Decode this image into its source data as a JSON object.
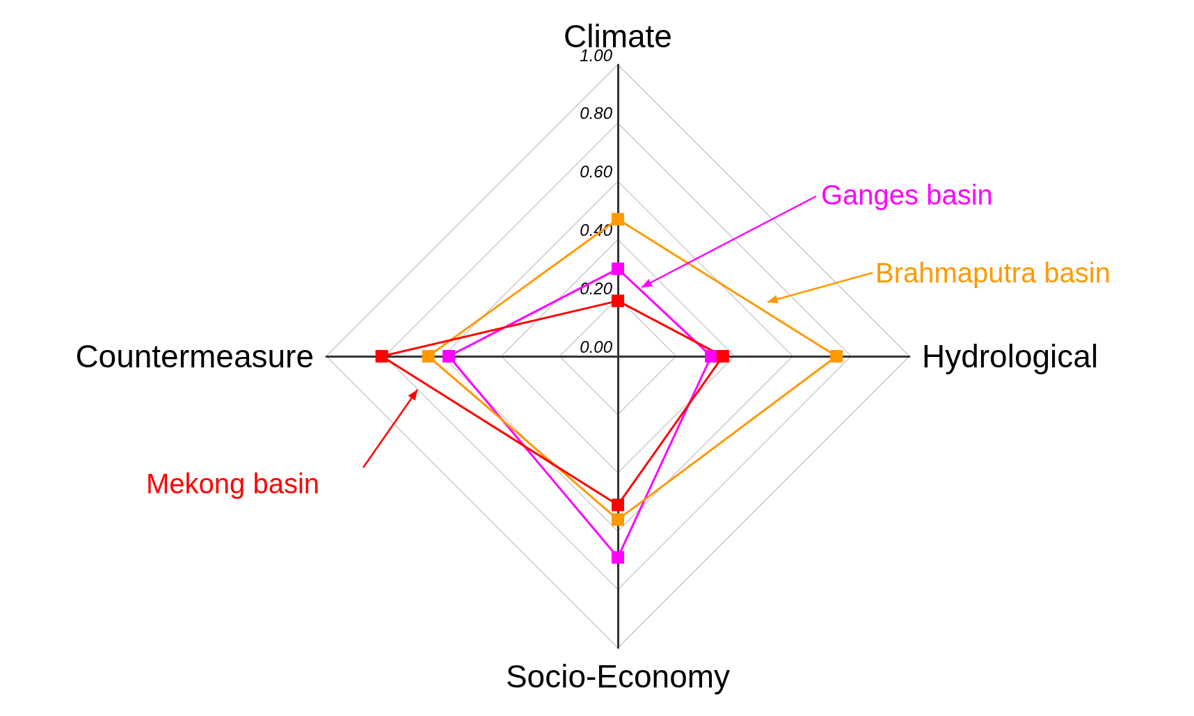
{
  "chart_data": {
    "type": "radar",
    "categories": [
      "Climate",
      "Hydrological",
      "Socio-Economy",
      "Countermeasure"
    ],
    "series": [
      {
        "name": "Ganges basin",
        "color": "#ff00ff",
        "values": [
          0.3,
          0.32,
          0.69,
          0.58
        ]
      },
      {
        "name": "Brahmaputra basin",
        "color": "#ff9900",
        "values": [
          0.47,
          0.75,
          0.56,
          0.65
        ]
      },
      {
        "name": "Mekong basin",
        "color": "#ff0000",
        "values": [
          0.19,
          0.36,
          0.51,
          0.81
        ]
      }
    ],
    "ylim": [
      0,
      1
    ],
    "yticks": [
      {
        "value": 0,
        "label": "0.00"
      },
      {
        "value": 0.2,
        "label": "0.20"
      },
      {
        "value": 0.4,
        "label": "0.40"
      },
      {
        "value": 0.6,
        "label": "0.60"
      },
      {
        "value": 0.8,
        "label": "0.80"
      },
      {
        "value": 1,
        "label": "1.00"
      }
    ],
    "grid": true,
    "legend": "right",
    "marker": "square",
    "line_style": "solid"
  }
}
